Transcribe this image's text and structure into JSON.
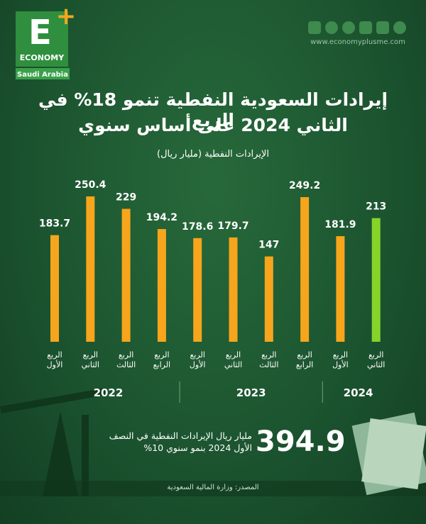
{
  "logo": {
    "letter": "E",
    "plus": "+",
    "brand": "ECONOMY",
    "region": "Saudi Arabia"
  },
  "website": "www.economyplusme.com",
  "chart_data": {
    "type": "bar",
    "title": [
      "إيرادات السعودية النفطية تنمو 18% في الربع",
      "الثاني 2024 على أساس سنوي"
    ],
    "subtitle": "الإيرادات النفطية (مليار ريال)",
    "groups": [
      {
        "name": "2022",
        "categories": [
          "الربع الأول",
          "الربع الثاني",
          "الربع الثالث",
          "الربع الرابع"
        ],
        "values": [
          183.7,
          250.4,
          229,
          194.2
        ],
        "colors": [
          "#f7a51c",
          "#f7a51c",
          "#f7a51c",
          "#f7a51c"
        ]
      },
      {
        "name": "2023",
        "categories": [
          "الربع الأول",
          "الربع الثاني",
          "الربع الثالث",
          "الربع الرابع"
        ],
        "values": [
          178.6,
          179.7,
          147,
          249.2
        ],
        "colors": [
          "#f7a51c",
          "#f7a51c",
          "#f7a51c",
          "#f7a51c"
        ]
      },
      {
        "name": "2024",
        "categories": [
          "الربع الأول",
          "الربع الثاني"
        ],
        "values": [
          181.9,
          213
        ],
        "colors": [
          "#f7a51c",
          "#86d42a"
        ]
      }
    ]
  },
  "highlight": {
    "number": "394.9",
    "text": [
      "مليار ريال الإيرادات النفطية في النصف",
      "الأول 2024 بنمو سنوي 10%"
    ]
  },
  "source": "المصدر: وزارة المالية السعودية"
}
